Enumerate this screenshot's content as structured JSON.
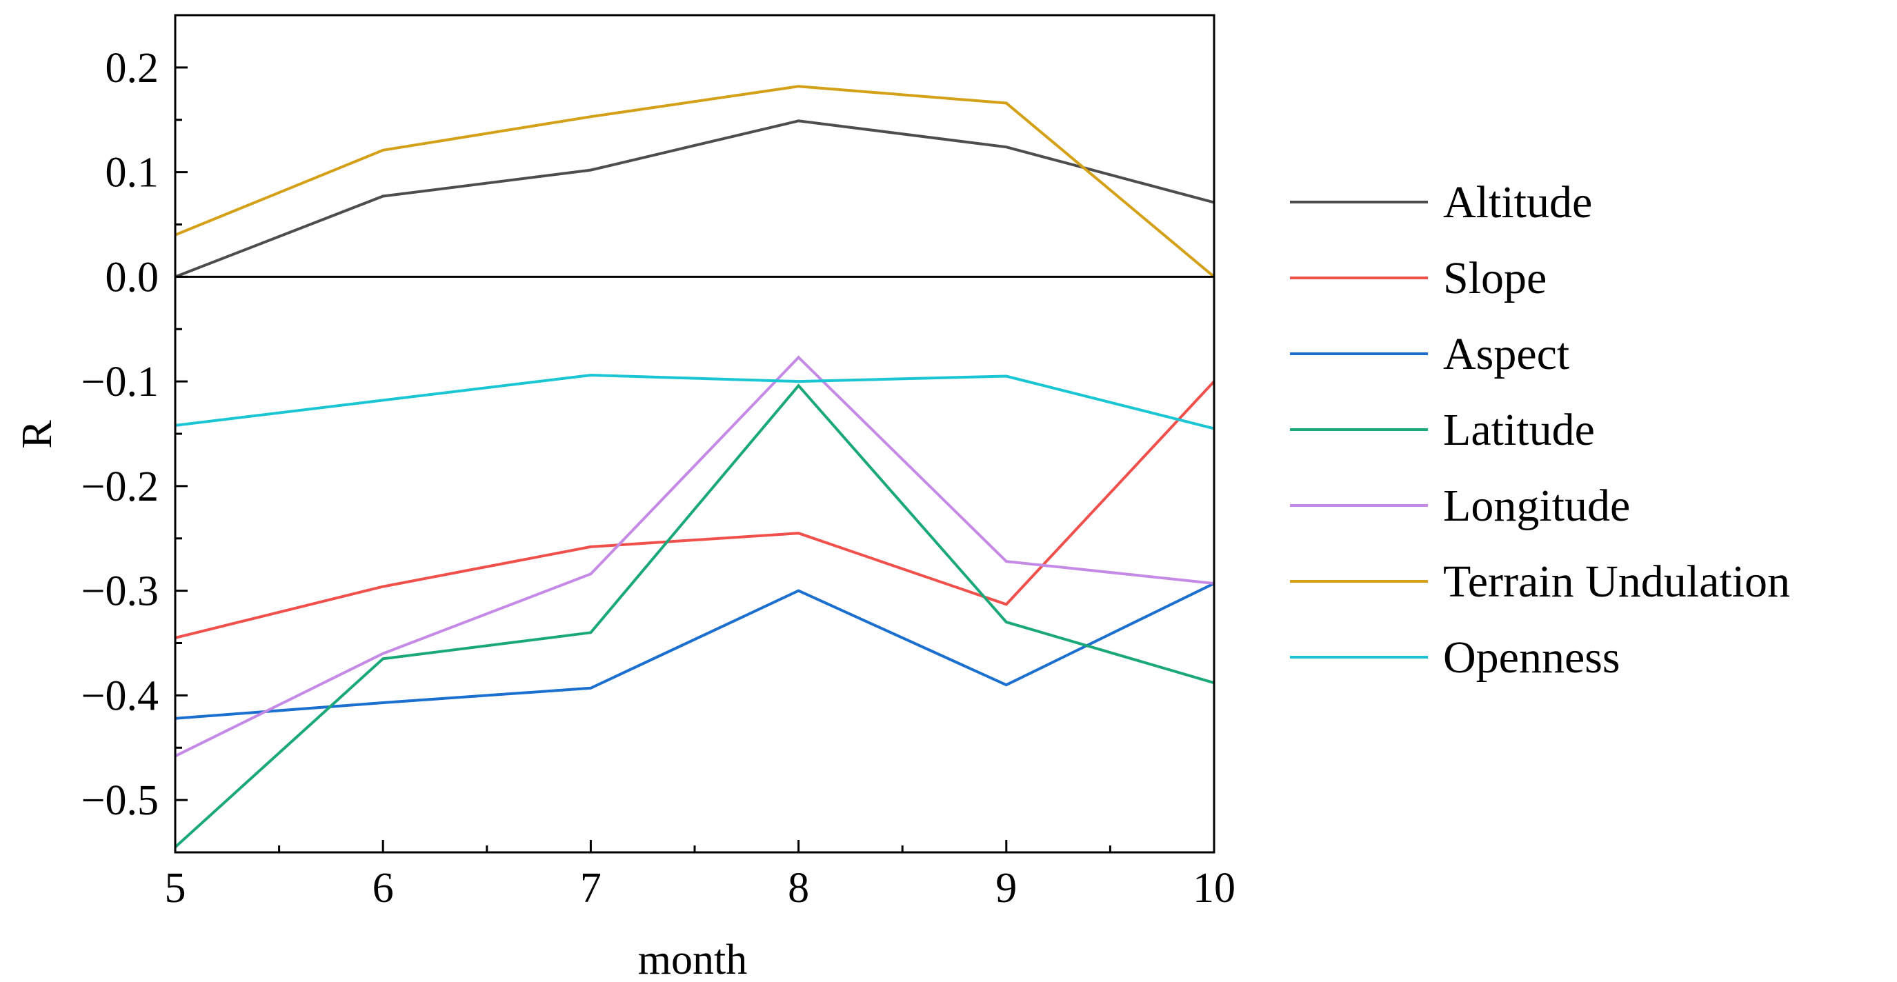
{
  "chart_data": {
    "type": "line",
    "title": "",
    "xlabel": "month",
    "ylabel": "R",
    "x": [
      5,
      6,
      7,
      8,
      9,
      10
    ],
    "xlim": [
      5,
      10
    ],
    "ylim": [
      -0.55,
      0.25
    ],
    "x_ticks": [
      "5",
      "6",
      "7",
      "8",
      "9",
      "10"
    ],
    "y_ticks": [
      0.2,
      0.1,
      0.0,
      -0.1,
      -0.2,
      -0.3,
      -0.4,
      -0.5
    ],
    "y_tick_labels": [
      "0.2",
      "0.1",
      "0.0",
      "−0.1",
      "−0.2",
      "−0.3",
      "−0.4",
      "−0.5"
    ],
    "zero_line": true,
    "grid": false,
    "legend_position": "right",
    "series": [
      {
        "name": "Altitude",
        "color": "#4d4d4d",
        "values": [
          0.0,
          0.077,
          0.102,
          0.149,
          0.124,
          0.071
        ]
      },
      {
        "name": "Slope",
        "color": "#f0504b",
        "values": [
          -0.345,
          -0.296,
          -0.258,
          -0.245,
          -0.313,
          -0.1
        ]
      },
      {
        "name": "Aspect",
        "color": "#1a6fcf",
        "values": [
          -0.422,
          -0.407,
          -0.393,
          -0.3,
          -0.39,
          -0.293
        ]
      },
      {
        "name": "Latitude",
        "color": "#1aa87a",
        "values": [
          -0.545,
          -0.365,
          -0.34,
          -0.104,
          -0.33,
          -0.388
        ]
      },
      {
        "name": "Longitude",
        "color": "#c48ae6",
        "values": [
          -0.458,
          -0.36,
          -0.284,
          -0.077,
          -0.272,
          -0.293
        ]
      },
      {
        "name": "Terrain Undulation",
        "color": "#d4a017",
        "values": [
          0.04,
          0.121,
          0.153,
          0.182,
          0.166,
          0.0
        ]
      },
      {
        "name": "Openness",
        "color": "#1ac6d4",
        "values": [
          -0.142,
          -0.118,
          -0.094,
          -0.1,
          -0.095,
          -0.145
        ]
      }
    ]
  }
}
